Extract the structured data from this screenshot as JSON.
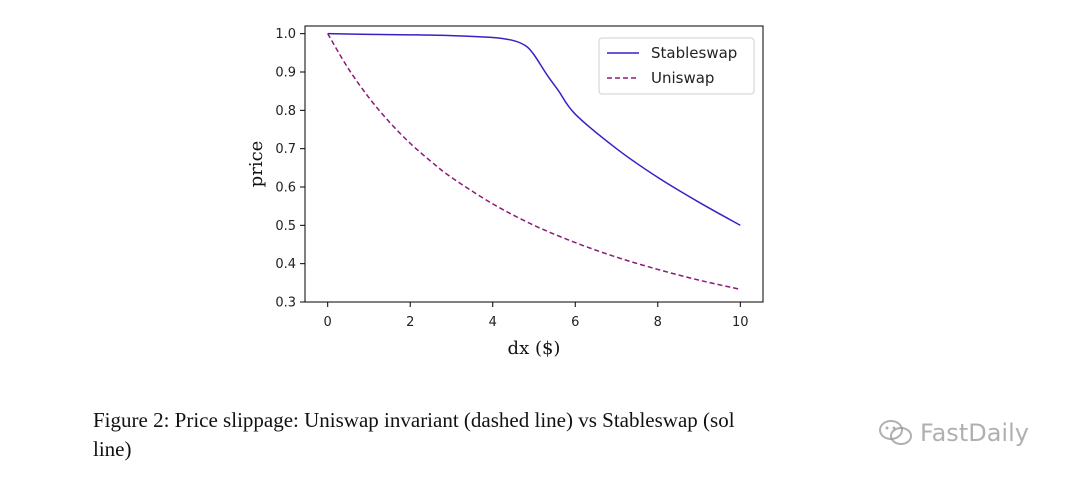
{
  "chart_data": {
    "type": "line",
    "xlabel": "dx ($)",
    "ylabel": "price",
    "xlim": [
      -0.55,
      10.55
    ],
    "ylim": [
      0.3,
      1.02
    ],
    "xticks": [
      0,
      2,
      4,
      6,
      8,
      10
    ],
    "yticks": [
      0.3,
      0.4,
      0.5,
      0.6,
      0.7,
      0.8,
      0.9,
      1.0
    ],
    "xtick_labels": [
      "0",
      "2",
      "4",
      "6",
      "8",
      "10"
    ],
    "ytick_labels": [
      "0.3",
      "0.4",
      "0.5",
      "0.6",
      "0.7",
      "0.8",
      "0.9",
      "1.0"
    ],
    "legend": "top-right",
    "grid": false,
    "series": [
      {
        "name": "Stableswap",
        "style": "solid",
        "color": "#3b1fc4",
        "x": [
          0,
          1,
          2,
          3,
          4,
          4.5,
          4.8,
          5.0,
          5.3,
          5.6,
          6,
          7,
          8,
          9,
          10
        ],
        "y": [
          1.0,
          0.998,
          0.997,
          0.995,
          0.99,
          0.982,
          0.968,
          0.945,
          0.895,
          0.85,
          0.79,
          0.7,
          0.625,
          0.56,
          0.5
        ]
      },
      {
        "name": "Uniswap",
        "style": "dashed",
        "color": "#8b1a7a",
        "x": [
          0,
          0.5,
          1,
          1.5,
          2,
          2.5,
          3,
          4,
          5,
          6,
          7,
          8,
          9,
          10
        ],
        "y": [
          1.0,
          0.909,
          0.833,
          0.769,
          0.714,
          0.667,
          0.625,
          0.556,
          0.5,
          0.455,
          0.417,
          0.385,
          0.357,
          0.333
        ]
      }
    ]
  },
  "caption": {
    "line1": "Figure 2: Price slippage: Uniswap invariant (dashed line) vs Stableswap (sol",
    "line2": "line)"
  },
  "watermark": {
    "text": "FastDaily",
    "icon": "wechat-icon"
  }
}
